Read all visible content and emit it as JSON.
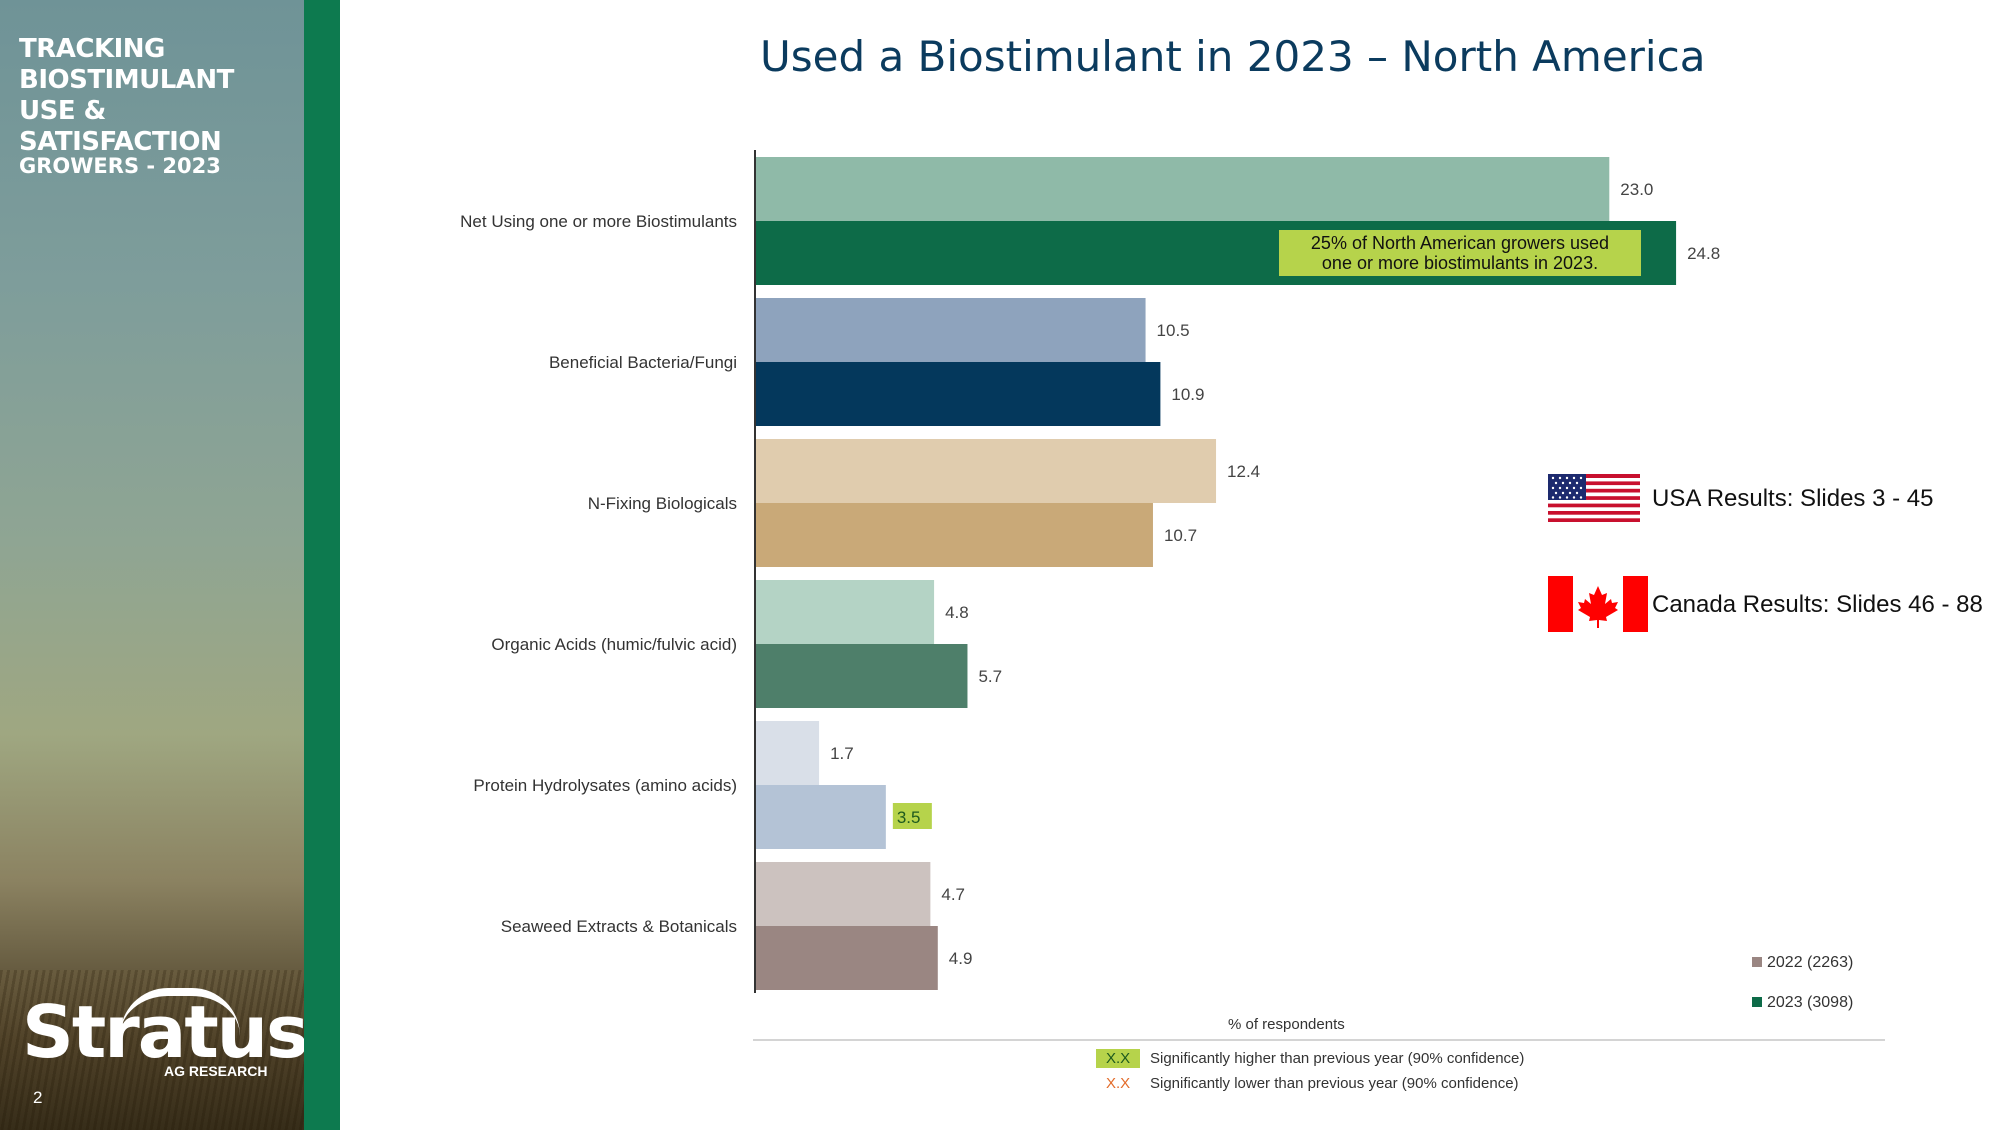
{
  "sidebar": {
    "title": "TRACKING\nBIOSTIMULANT\nUSE & SATISFACTION",
    "subtitle": "GROWERS - 2023",
    "logo_text": "Stratus",
    "logo_subtext": "AG RESEARCH",
    "page_number": "2",
    "bar_color": "#0d7a4f"
  },
  "title": "Used a Biostimulant in 2023 – North America",
  "annotation": "25% of North American growers used\none or more biostimulants in 2023.",
  "flags": {
    "usa_label": "USA Results: Slides 3 - 45",
    "canada_label": "Canada Results: Slides 46 - 88",
    "usa_icon": "usa-flag-icon",
    "canada_icon": "canada-flag-icon"
  },
  "legend": {
    "series_2022": "2022 (2263)",
    "series_2023": "2023 (3098)",
    "color_2022": "#9a8682",
    "color_2023": "#0d6b48"
  },
  "footnotes": {
    "xlabel": "% of respondents",
    "sig_higher_marker": "X.X",
    "sig_higher_text": "Significantly higher than previous year (90% confidence)",
    "sig_lower_marker": "X.X",
    "sig_lower_text": "Significantly lower than previous year (90% confidence)"
  },
  "chart_data": {
    "type": "bar",
    "orientation": "horizontal",
    "categories": [
      "Net Using one or more Biostimulants",
      "Beneficial Bacteria/Fungi",
      "N-Fixing Biologicals",
      "Organic Acids (humic/fulvic acid)",
      "Protein Hydrolysates (amino acids)",
      "Seaweed Extracts & Botanicals"
    ],
    "series": [
      {
        "name": "2022 (2263)",
        "values": [
          23.0,
          10.5,
          12.4,
          4.8,
          1.7,
          4.7
        ],
        "colors": [
          "#8fbaa8",
          "#8ea3bd",
          "#e0ccae",
          "#b4d3c5",
          "#d9dfe8",
          "#ccc2bf"
        ]
      },
      {
        "name": "2023 (3098)",
        "values": [
          24.8,
          10.9,
          10.7,
          5.7,
          3.5,
          4.9
        ],
        "colors": [
          "#0d6b48",
          "#04385c",
          "#c9a978",
          "#4e7f6a",
          "#b4c3d6",
          "#9a8682"
        ],
        "significant_higher": [
          false,
          false,
          false,
          false,
          true,
          false
        ]
      }
    ],
    "value_labels": [
      [
        "23.0",
        "10.5",
        "12.4",
        "4.8",
        "1.7",
        "4.7"
      ],
      [
        "24.8",
        "10.9",
        "10.7",
        "5.7",
        "3.5",
        "4.9"
      ]
    ],
    "xlabel": "% of respondents",
    "xlim": [
      0,
      30
    ],
    "grid": false,
    "legend_position": "bottom-right"
  }
}
